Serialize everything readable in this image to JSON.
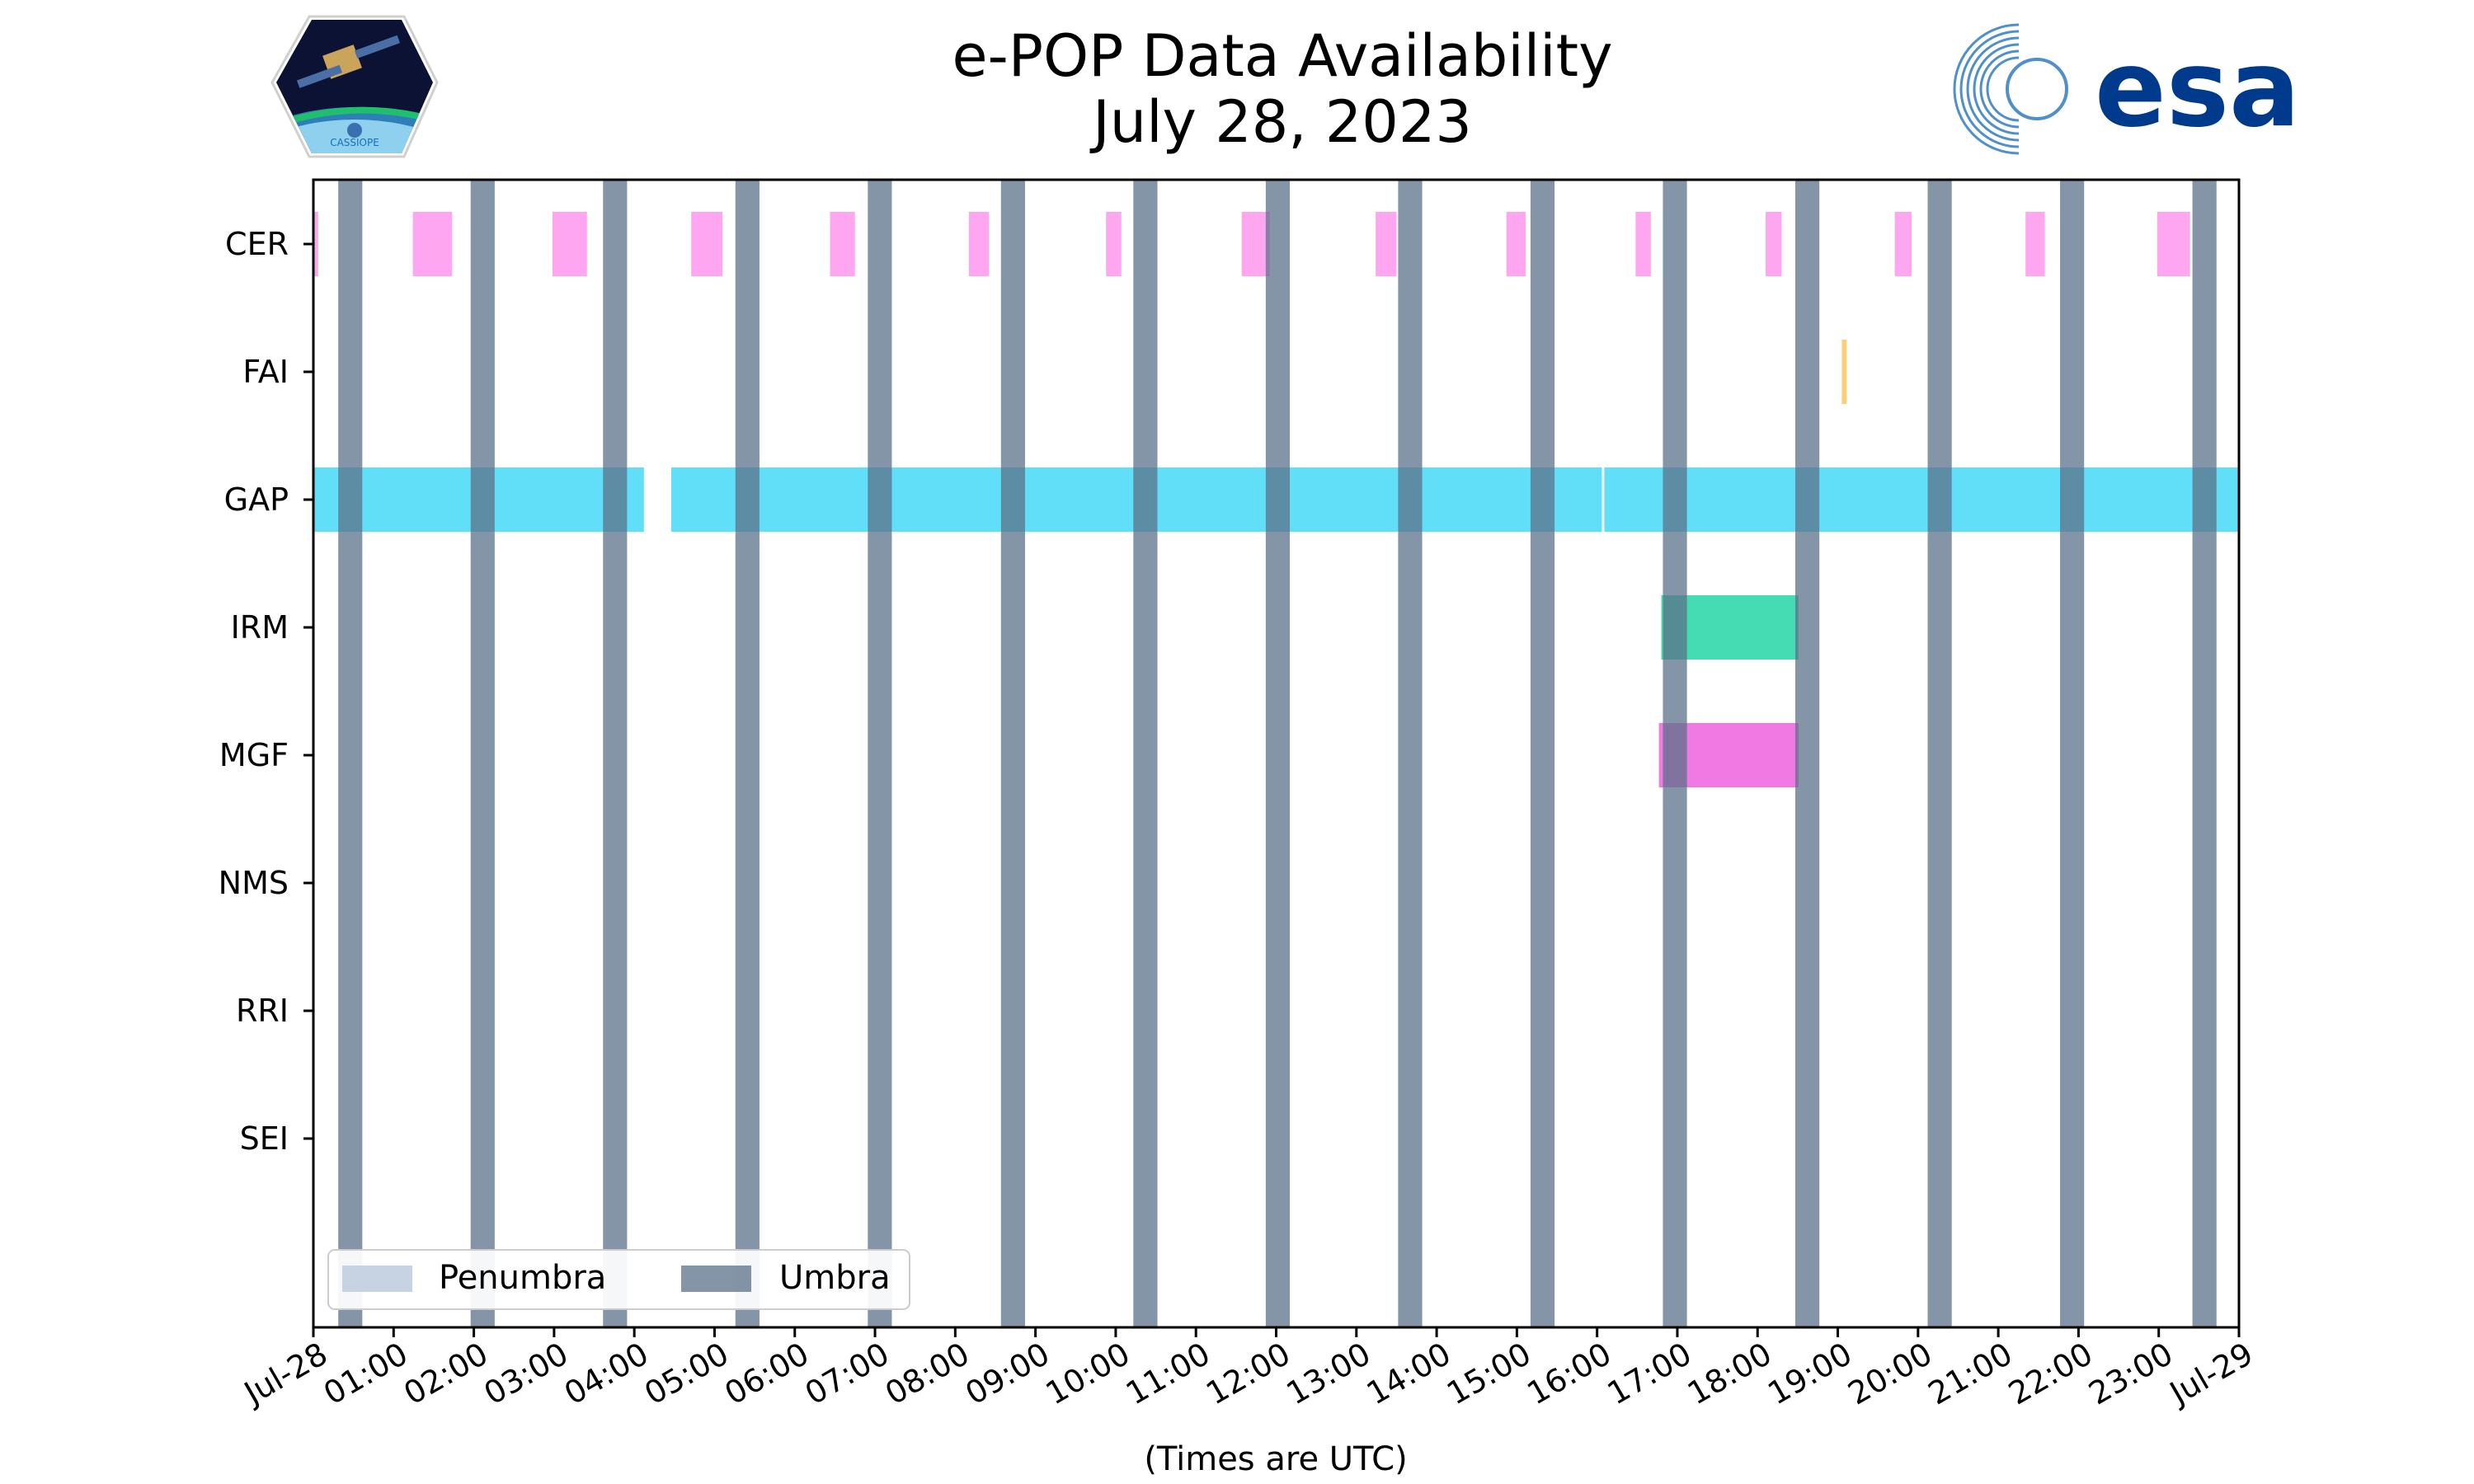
{
  "chart_data": {
    "type": "timeline",
    "title": "e-POP Data Availability",
    "subtitle": "July 28, 2023",
    "xlabel": "(Times are UTC)",
    "xrange_hours": [
      0,
      24
    ],
    "x_tick_labels": [
      "Jul-28",
      "01:00",
      "02:00",
      "03:00",
      "04:00",
      "05:00",
      "06:00",
      "07:00",
      "08:00",
      "09:00",
      "10:00",
      "11:00",
      "12:00",
      "13:00",
      "14:00",
      "15:00",
      "16:00",
      "17:00",
      "18:00",
      "19:00",
      "20:00",
      "21:00",
      "22:00",
      "23:00",
      "Jul-29"
    ],
    "instruments": [
      "CER",
      "FAI",
      "GAP",
      "IRM",
      "MGF",
      "NMS",
      "RRI",
      "SEI"
    ],
    "series": [
      {
        "name": "CER",
        "color": "#ff9ef0",
        "intervals": [
          [
            0.0,
            0.06
          ],
          [
            1.24,
            1.73
          ],
          [
            2.98,
            3.41
          ],
          [
            4.71,
            5.1
          ],
          [
            6.44,
            6.75
          ],
          [
            8.17,
            8.42
          ],
          [
            9.88,
            10.07
          ],
          [
            11.57,
            11.92
          ],
          [
            13.24,
            13.5
          ],
          [
            14.87,
            15.11
          ],
          [
            16.48,
            16.67
          ],
          [
            18.1,
            18.3
          ],
          [
            19.71,
            19.92
          ],
          [
            21.34,
            21.58
          ],
          [
            22.98,
            23.39
          ]
        ]
      },
      {
        "name": "FAI",
        "color": "#ffc96b",
        "intervals": [
          [
            19.05,
            19.11
          ]
        ]
      },
      {
        "name": "GAP",
        "color": "#55dcf7",
        "intervals": [
          [
            0.0,
            4.12
          ],
          [
            4.46,
            16.06
          ],
          [
            16.09,
            24.0
          ]
        ]
      },
      {
        "name": "IRM",
        "color": "#35d9ad",
        "intervals": [
          [
            16.8,
            18.51
          ]
        ]
      },
      {
        "name": "MGF",
        "color": "#ef6ee2",
        "intervals": [
          [
            16.77,
            18.51
          ]
        ]
      },
      {
        "name": "NMS",
        "color": "#888888",
        "intervals": []
      },
      {
        "name": "RRI",
        "color": "#888888",
        "intervals": []
      },
      {
        "name": "SEI",
        "color": "#888888",
        "intervals": []
      }
    ],
    "umbra": {
      "color": "#5b7189",
      "intervals": [
        [
          0.31,
          0.61
        ],
        [
          1.96,
          2.26
        ],
        [
          3.61,
          3.91
        ],
        [
          5.26,
          5.56
        ],
        [
          6.91,
          7.21
        ],
        [
          8.57,
          8.87
        ],
        [
          10.22,
          10.52
        ],
        [
          11.87,
          12.17
        ],
        [
          13.52,
          13.82
        ],
        [
          15.17,
          15.47
        ],
        [
          16.82,
          17.12
        ],
        [
          18.47,
          18.77
        ],
        [
          20.12,
          20.42
        ],
        [
          21.77,
          22.07
        ],
        [
          23.42,
          23.72
        ]
      ],
      "instrument_only": [
        0,
        1,
        2,
        3,
        4,
        5,
        6,
        7,
        8,
        9,
        10,
        11,
        12,
        13,
        14
      ]
    },
    "umbra_long": [
      8.57,
      10.22,
      11.87,
      13.52,
      15.17,
      16.82,
      18.47,
      20.12,
      21.77,
      23.42
    ],
    "legend": {
      "placement": "lower-left",
      "entries": [
        {
          "label": "Penumbra",
          "color": "#c7d3e3"
        },
        {
          "label": "Umbra",
          "color": "#5b7189"
        }
      ]
    }
  },
  "logos": {
    "left": "CASSIOPE",
    "right": "esa"
  }
}
